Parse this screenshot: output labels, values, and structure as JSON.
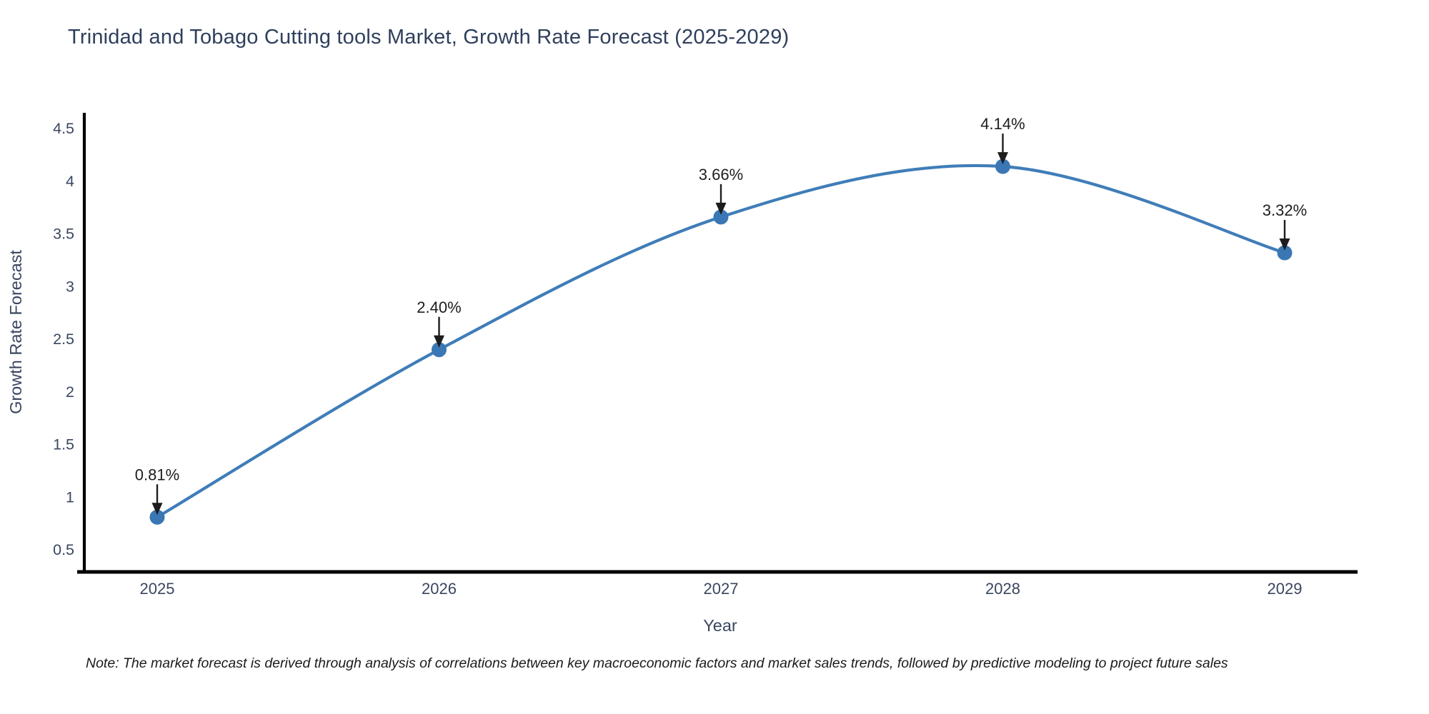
{
  "chart_data": {
    "type": "line",
    "title": "Trinidad and Tobago Cutting tools Market, Growth Rate Forecast (2025-2029)",
    "xlabel": "Year",
    "ylabel": "Growth Rate Forecast",
    "categories": [
      "2025",
      "2026",
      "2027",
      "2028",
      "2029"
    ],
    "values": [
      0.81,
      2.4,
      3.66,
      4.14,
      3.32
    ],
    "point_labels": [
      "0.81%",
      "2.40%",
      "3.66%",
      "4.14%",
      "3.32%"
    ],
    "ytick_labels": [
      "0.5",
      "1",
      "1.5",
      "2",
      "2.5",
      "3",
      "3.5",
      "4",
      "4.5"
    ],
    "ylim": [
      0.3,
      4.65
    ],
    "grid": false,
    "legend": "none",
    "line_color": "#3f7db8",
    "marker_color": "#3a77b4",
    "axis_color": "#000000",
    "tick_text_color": "#3a4660",
    "annotation_color": "#1d1d1d",
    "note": "Note: The market forecast is derived through analysis of correlations between key macroeconomic factors and market sales trends, followed by predictive modeling to project future sales"
  }
}
